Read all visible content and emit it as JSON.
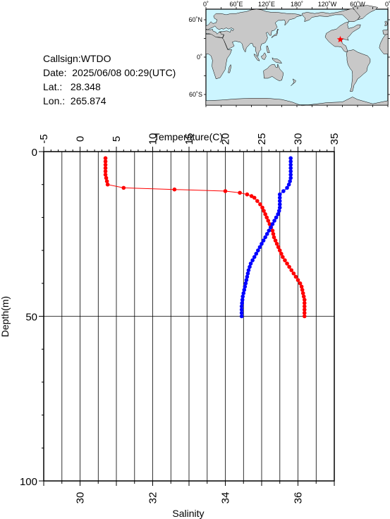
{
  "info": {
    "callsign": "Callsign:WTDO",
    "date_label": "Date:",
    "date_value": "2025/06/08 00:29(UTC)",
    "lat_label": "Lat.:",
    "lat_value": "28.348",
    "lon_label": "Lon.:",
    "lon_value": "265.874"
  },
  "map": {
    "top_labels": [
      "0˚",
      "60˚E",
      "120˚E",
      "180˚",
      "120˚W",
      "60˚W",
      "0˚"
    ],
    "left_labels": [
      "60˚N",
      "0˚",
      "60˚S"
    ],
    "ocean_color": "#ccf5ff",
    "land_color": "#c8c8c8",
    "marker": "star-marker",
    "marker_color": "#ff0000",
    "marker_lon": 265.874,
    "marker_lat": 28.348
  },
  "chart_data": {
    "type": "line",
    "title": "",
    "top_axis_label": "Temperature(C)",
    "bottom_axis_label": "Salinity",
    "left_axis_label": "Depth(m)",
    "temperature_range": [
      -5,
      35
    ],
    "temperature_ticks": [
      -5,
      0,
      5,
      10,
      15,
      20,
      25,
      30,
      35
    ],
    "salinity_range": [
      29,
      37
    ],
    "salinity_ticks": [
      30,
      32,
      34,
      36
    ],
    "depth_range": [
      0,
      100
    ],
    "depth_ticks": [
      0,
      50,
      100
    ],
    "grid": true,
    "series": [
      {
        "color": "#ff0000",
        "quantity": "temperature",
        "depth": [
          2,
          3,
          4,
          5,
          6,
          7,
          8,
          9,
          10,
          11,
          11.5,
          12,
          12.5,
          13,
          13.5,
          14,
          15,
          16,
          17,
          18,
          19,
          20,
          21,
          22,
          23,
          24,
          25,
          26,
          27,
          28,
          29,
          30,
          31,
          32,
          33,
          34,
          35,
          36,
          37,
          38,
          39,
          40,
          41,
          42,
          43,
          44,
          45,
          46,
          47,
          48,
          49,
          50
        ],
        "values": [
          3.5,
          3.5,
          3.5,
          3.5,
          3.5,
          3.5,
          3.6,
          3.7,
          3.8,
          6,
          13,
          20,
          22,
          23,
          23.6,
          24,
          24.4,
          24.8,
          25.1,
          25.3,
          25.5,
          25.7,
          25.9,
          26.1,
          26.3,
          26.5,
          26.6,
          26.7,
          26.9,
          27.1,
          27.3,
          27.5,
          27.7,
          27.9,
          28.2,
          28.5,
          28.8,
          29.1,
          29.4,
          29.7,
          30,
          30.3,
          30.5,
          30.6,
          30.7,
          30.8,
          30.9,
          30.9,
          30.9,
          30.9,
          30.9,
          30.9
        ]
      },
      {
        "color": "#0000ff",
        "quantity": "salinity",
        "depth": [
          2,
          3,
          4,
          5,
          6,
          7,
          8,
          9,
          10,
          11,
          12,
          13,
          14,
          15,
          16,
          17,
          18,
          19,
          20,
          21,
          22,
          23,
          24,
          25,
          26,
          27,
          28,
          29,
          30,
          31,
          32,
          33,
          34,
          35,
          36,
          37,
          38,
          39,
          40,
          41,
          42,
          43,
          44,
          45,
          46,
          47,
          48,
          49,
          50
        ],
        "values": [
          35.8,
          35.8,
          35.8,
          35.8,
          35.8,
          35.8,
          35.8,
          35.78,
          35.75,
          35.7,
          35.6,
          35.5,
          35.5,
          35.5,
          35.5,
          35.5,
          35.48,
          35.45,
          35.4,
          35.35,
          35.3,
          35.25,
          35.2,
          35.15,
          35.1,
          35.05,
          35,
          34.95,
          34.9,
          34.85,
          34.8,
          34.75,
          34.7,
          34.67,
          34.64,
          34.62,
          34.6,
          34.58,
          34.56,
          34.54,
          34.52,
          34.5,
          34.48,
          34.47,
          34.46,
          34.45,
          34.45,
          34.45,
          34.45
        ]
      }
    ]
  }
}
